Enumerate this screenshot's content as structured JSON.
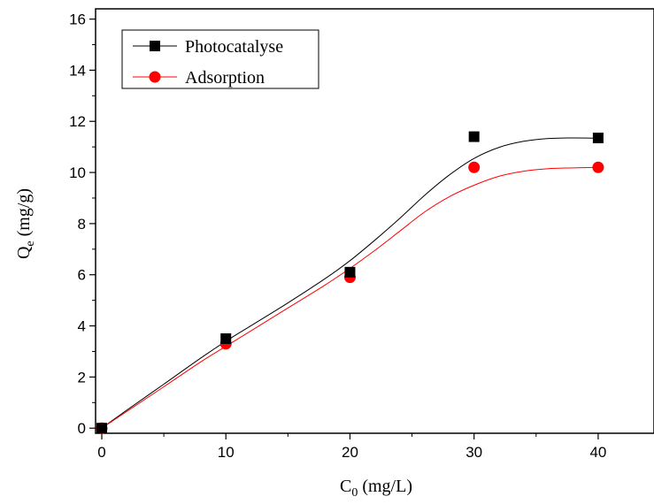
{
  "chart_data": {
    "type": "scatter",
    "title": "",
    "xlabel": {
      "main": "C",
      "sub": "0",
      "rest": " (mg/L)"
    },
    "ylabel": {
      "main": "Q",
      "sub": "e",
      "rest": " (mg/g)"
    },
    "xlim": [
      -0.5,
      44.5
    ],
    "ylim": [
      -0.2,
      16.4
    ],
    "x_ticks": [
      0,
      10,
      20,
      30,
      40
    ],
    "x_minor_ticks": [
      5,
      15,
      25,
      35
    ],
    "y_ticks": [
      0,
      2,
      4,
      6,
      8,
      10,
      12,
      14,
      16
    ],
    "y_minor_ticks": [
      1,
      3,
      5,
      7,
      9,
      11,
      13,
      15
    ],
    "grid": false,
    "legend_position": "top-left",
    "series": [
      {
        "name": "Photocatalyse",
        "marker": "square",
        "marker_color": "#000000",
        "line_color": "#000000",
        "x": [
          0,
          10,
          20,
          30,
          40
        ],
        "y": [
          0,
          3.5,
          6.1,
          11.4,
          11.35
        ],
        "fit": [
          [
            0,
            0
          ],
          [
            2,
            0.7
          ],
          [
            5,
            1.72
          ],
          [
            8,
            2.75
          ],
          [
            10,
            3.4
          ],
          [
            12,
            4.0
          ],
          [
            15,
            4.9
          ],
          [
            18,
            5.85
          ],
          [
            20,
            6.55
          ],
          [
            22,
            7.35
          ],
          [
            24,
            8.2
          ],
          [
            26,
            9.1
          ],
          [
            28,
            9.9
          ],
          [
            30,
            10.55
          ],
          [
            32,
            10.98
          ],
          [
            34,
            11.22
          ],
          [
            36,
            11.33
          ],
          [
            38,
            11.35
          ],
          [
            40,
            11.34
          ]
        ]
      },
      {
        "name": "Adsorption",
        "marker": "circle",
        "marker_color": "#ff0000",
        "line_color": "#ff0000",
        "x": [
          0,
          10,
          20,
          30,
          40
        ],
        "y": [
          0,
          3.3,
          5.9,
          10.2,
          10.2
        ],
        "fit": [
          [
            0,
            0
          ],
          [
            2,
            0.65
          ],
          [
            5,
            1.62
          ],
          [
            8,
            2.6
          ],
          [
            10,
            3.2
          ],
          [
            12,
            3.8
          ],
          [
            15,
            4.7
          ],
          [
            18,
            5.6
          ],
          [
            20,
            6.25
          ],
          [
            22,
            6.95
          ],
          [
            24,
            7.7
          ],
          [
            26,
            8.45
          ],
          [
            28,
            9.05
          ],
          [
            30,
            9.5
          ],
          [
            32,
            9.85
          ],
          [
            34,
            10.05
          ],
          [
            36,
            10.15
          ],
          [
            38,
            10.18
          ],
          [
            40,
            10.2
          ]
        ]
      }
    ]
  }
}
